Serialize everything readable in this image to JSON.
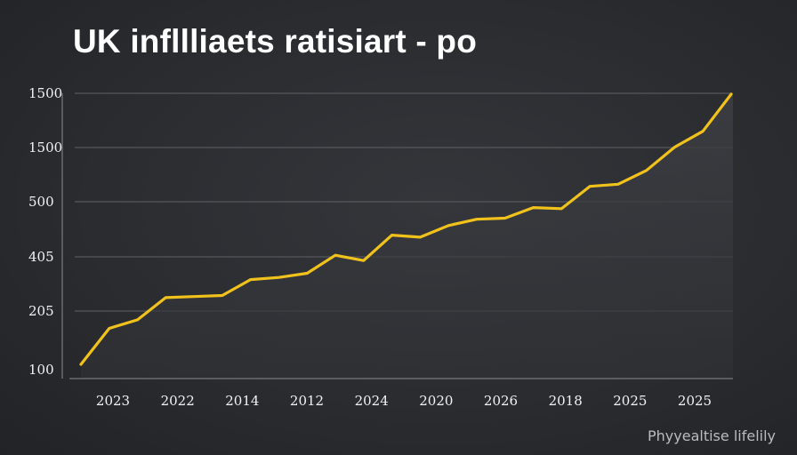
{
  "title": "UK infllliaets ratisiart - po",
  "watermark": "Phyyealtise lifelily",
  "colors": {
    "line": "#f1c21b",
    "grid": "#55575c",
    "axis": "#8a8c90",
    "text": "#f2f2f2"
  },
  "chart_data": {
    "type": "line",
    "title": "UK infllliaets ratisiart - po",
    "xlabel": "",
    "ylabel": "",
    "grid": true,
    "y_tick_labels": [
      "1500",
      "1500",
      "500",
      "405",
      "205",
      "100"
    ],
    "x_tick_labels": [
      "2023",
      "2022",
      "2014",
      "2012",
      "2024",
      "2020",
      "2026",
      "2018",
      "2025",
      "2025"
    ],
    "series": [
      {
        "values": [
          100,
          134,
          142,
          163,
          164,
          165,
          180,
          182,
          186,
          203,
          198,
          222,
          220,
          231,
          237,
          238,
          248,
          247,
          268,
          270,
          283,
          305,
          320,
          355
        ]
      }
    ]
  }
}
